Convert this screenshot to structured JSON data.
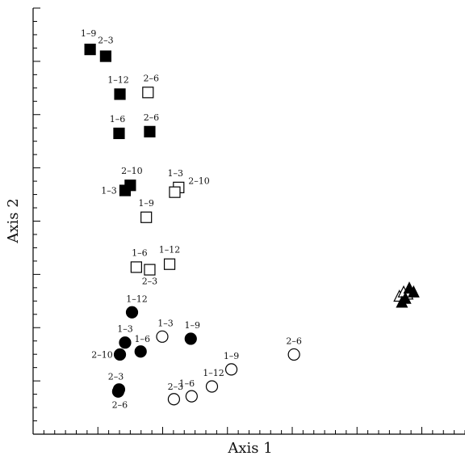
{
  "chart_data": {
    "type": "scatter",
    "title": "",
    "xlabel": "Axis 1",
    "ylabel": "Axis 2",
    "xlim": [
      0,
      100
    ],
    "ylim": [
      0,
      100
    ],
    "grid": false,
    "legend": "none",
    "colors": {
      "ink": "#000000",
      "background": "#ffffff"
    },
    "series": [
      {
        "marker": "square",
        "fill": "filled",
        "points": [
          {
            "x": 13.2,
            "y": 90.3,
            "label": "1–9"
          },
          {
            "x": 16.8,
            "y": 88.7,
            "label": "2–3"
          },
          {
            "x": 20.1,
            "y": 79.8,
            "label": "1–12"
          },
          {
            "x": 19.9,
            "y": 70.6,
            "label": "1–6"
          },
          {
            "x": 27.0,
            "y": 71.0,
            "label": "2–6"
          },
          {
            "x": 22.5,
            "y": 58.4,
            "label": "2–10"
          },
          {
            "x": 21.3,
            "y": 57.2,
            "label": "1–3"
          }
        ]
      },
      {
        "marker": "square",
        "fill": "open",
        "points": [
          {
            "x": 26.6,
            "y": 80.2,
            "label": "2–6"
          },
          {
            "x": 33.7,
            "y": 57.9,
            "label": "1–3"
          },
          {
            "x": 32.8,
            "y": 56.8,
            "label": "2–10"
          },
          {
            "x": 26.2,
            "y": 50.9,
            "label": "1–9"
          },
          {
            "x": 23.9,
            "y": 39.2,
            "label": "1–6"
          },
          {
            "x": 31.6,
            "y": 39.9,
            "label": "1–12"
          },
          {
            "x": 27.0,
            "y": 38.6,
            "label": "2–3"
          }
        ]
      },
      {
        "marker": "circle",
        "fill": "filled",
        "points": [
          {
            "x": 22.9,
            "y": 28.6,
            "label": "1–12"
          },
          {
            "x": 21.3,
            "y": 21.5,
            "label": "1–3"
          },
          {
            "x": 24.9,
            "y": 19.4,
            "label": "1–6"
          },
          {
            "x": 20.1,
            "y": 18.7,
            "label": "2–10"
          },
          {
            "x": 36.5,
            "y": 22.4,
            "label": "1–9"
          },
          {
            "x": 19.9,
            "y": 10.5,
            "label": "2–3"
          },
          {
            "x": 19.7,
            "y": 10.0,
            "label": "2–6"
          }
        ]
      },
      {
        "marker": "circle",
        "fill": "open",
        "points": [
          {
            "x": 29.9,
            "y": 22.9,
            "label": "1–3"
          },
          {
            "x": 45.9,
            "y": 15.2,
            "label": "1–9"
          },
          {
            "x": 60.4,
            "y": 18.7,
            "label": "2–6"
          },
          {
            "x": 41.4,
            "y": 11.2,
            "label": "1–12"
          },
          {
            "x": 36.7,
            "y": 8.9,
            "label": "1–6"
          },
          {
            "x": 32.6,
            "y": 8.2,
            "label": "2–3"
          }
        ]
      },
      {
        "marker": "triangle",
        "fill": "open",
        "points": [
          {
            "x": 84.8,
            "y": 32.2,
            "label": ""
          },
          {
            "x": 85.8,
            "y": 33.2,
            "label": ""
          },
          {
            "x": 86.7,
            "y": 32.7,
            "label": ""
          }
        ]
      },
      {
        "marker": "triangle",
        "fill": "filled",
        "points": [
          {
            "x": 85.4,
            "y": 30.8,
            "label": ""
          },
          {
            "x": 86.2,
            "y": 31.7,
            "label": ""
          },
          {
            "x": 87.1,
            "y": 34.1,
            "label": ""
          },
          {
            "x": 88.1,
            "y": 33.2,
            "label": ""
          }
        ]
      }
    ]
  }
}
